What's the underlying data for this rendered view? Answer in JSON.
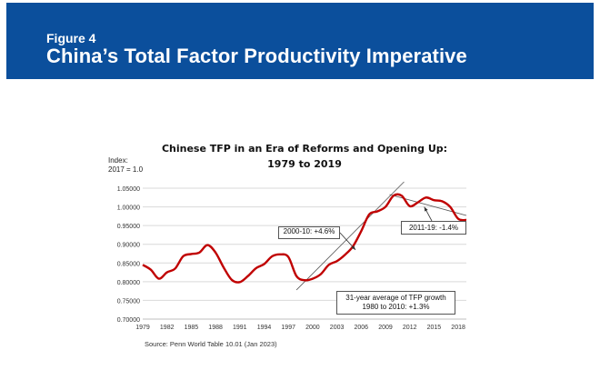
{
  "header": {
    "figure_label": "Figure 4",
    "title": "China’s Total Factor Productivity Imperative"
  },
  "chart_data": {
    "type": "line",
    "title_line1": "Chinese TFP in an Era of Reforms and Opening Up:",
    "title_line2": "1979 to 2019",
    "ylabel_line1": "Index:",
    "ylabel_line2": "2017 = 1.0",
    "ylim": [
      0.7,
      1.05
    ],
    "yticks": [
      "0.70000",
      "0.75000",
      "0.80000",
      "0.85000",
      "0.90000",
      "0.95000",
      "1.00000",
      "1.05000"
    ],
    "xlim": [
      1979,
      2019
    ],
    "xticks": [
      "1979",
      "1982",
      "1985",
      "1988",
      "1991",
      "1994",
      "1997",
      "2000",
      "2003",
      "2006",
      "2009",
      "2012",
      "2015",
      "2018"
    ],
    "grid": true,
    "series": [
      {
        "color": "#c00000",
        "x": [
          1979,
          1980,
          1981,
          1982,
          1983,
          1984,
          1985,
          1986,
          1987,
          1988,
          1989,
          1990,
          1991,
          1992,
          1993,
          1994,
          1995,
          1996,
          1997,
          1998,
          1999,
          2000,
          2001,
          2002,
          2003,
          2004,
          2005,
          2006,
          2007,
          2008,
          2009,
          2010,
          2011,
          2012,
          2013,
          2014,
          2015,
          2016,
          2017,
          2018,
          2019
        ],
        "values": [
          0.845,
          0.832,
          0.808,
          0.825,
          0.835,
          0.868,
          0.874,
          0.878,
          0.898,
          0.878,
          0.838,
          0.805,
          0.799,
          0.815,
          0.836,
          0.847,
          0.868,
          0.873,
          0.866,
          0.815,
          0.804,
          0.808,
          0.82,
          0.845,
          0.855,
          0.872,
          0.895,
          0.935,
          0.98,
          0.988,
          1.0,
          1.03,
          1.03,
          1.002,
          1.012,
          1.025,
          1.018,
          1.015,
          1.0,
          0.968,
          0.965
        ]
      }
    ],
    "trend_lines": [
      {
        "label": "2000-10: +4.6%",
        "x": [
          1998,
          2011.3
        ],
        "y": [
          0.778,
          1.067
        ]
      },
      {
        "label": "2011-19: -1.4%",
        "x": [
          2009.5,
          2019
        ],
        "y": [
          1.033,
          0.977
        ]
      }
    ],
    "annotations": {
      "a1": "2000-10: +4.6%",
      "a2": "2011-19: -1.4%",
      "a3_line1": "31-year average of TFP growth",
      "a3_line2": "1980 to 2010: +1.3%"
    },
    "source": "Source: Penn World Table 10.01 (Jan 2023)"
  }
}
